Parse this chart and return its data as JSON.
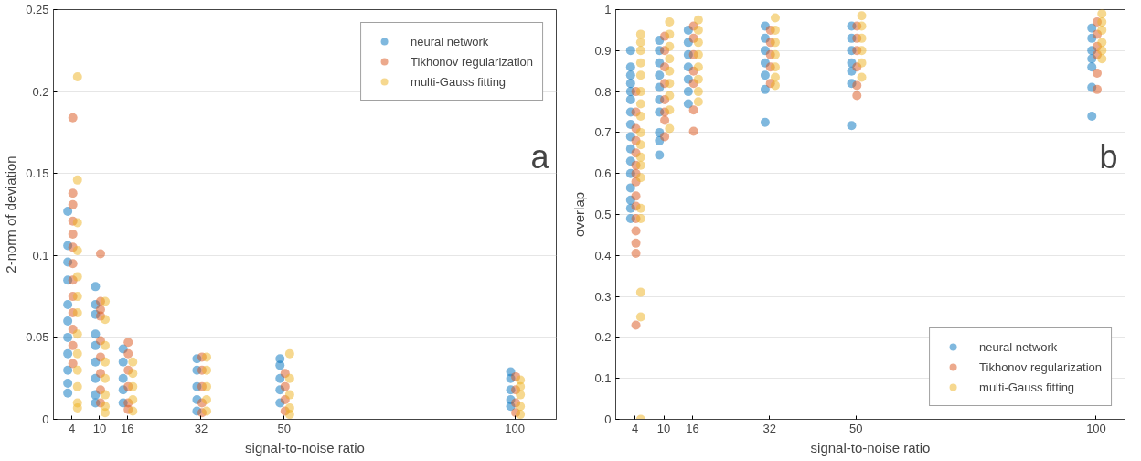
{
  "chart_data": [
    {
      "type": "scatter",
      "xlabel": "signal-to-noise ratio",
      "ylabel": "2-norm of deviation",
      "annotations": [
        "a"
      ],
      "xlim": [
        0,
        109
      ],
      "xticks": [
        4,
        10,
        16,
        32,
        50,
        100
      ],
      "ylim": [
        0,
        0.25
      ],
      "yticks": [
        0,
        0.05,
        0.1,
        0.15,
        0.2,
        0.25
      ],
      "grid": "y",
      "legend": "top right",
      "marker": "circle",
      "series": [
        {
          "name": "neural network",
          "color": "#0072bd",
          "x": [
            3.1,
            3.1,
            3.1,
            3.1,
            3.1,
            3.1,
            3.1,
            3.1,
            3.1,
            3.1,
            3.1,
            9.1,
            9.1,
            9.1,
            9.1,
            9.1,
            9.1,
            9.1,
            9.1,
            9.1,
            15.1,
            15.1,
            15.1,
            15.1,
            15.1,
            31.1,
            31.1,
            31.1,
            31.1,
            31.1,
            49.1,
            49.1,
            49.1,
            49.1,
            49.1,
            99.1,
            99.1,
            99.1,
            99.1,
            99.1
          ],
          "values": [
            0.127,
            0.106,
            0.096,
            0.085,
            0.07,
            0.06,
            0.05,
            0.04,
            0.03,
            0.022,
            0.016,
            0.081,
            0.07,
            0.064,
            0.052,
            0.045,
            0.035,
            0.025,
            0.015,
            0.01,
            0.043,
            0.035,
            0.025,
            0.018,
            0.01,
            0.037,
            0.03,
            0.02,
            0.012,
            0.005,
            0.037,
            0.033,
            0.025,
            0.018,
            0.01,
            0.029,
            0.025,
            0.018,
            0.012,
            0.008
          ]
        },
        {
          "name": "Tikhonov regularization",
          "color": "#d95319",
          "x": [
            4.2,
            4.2,
            4.2,
            4.2,
            4.2,
            4.2,
            4.2,
            4.2,
            4.2,
            4.2,
            4.2,
            4.2,
            4.2,
            10.2,
            10.2,
            10.2,
            10.2,
            10.2,
            10.2,
            10.2,
            10.2,
            10.2,
            16.2,
            16.2,
            16.2,
            16.2,
            16.2,
            16.2,
            32.2,
            32.2,
            32.2,
            32.2,
            32.2,
            50.2,
            50.2,
            50.2,
            50.2,
            100.2,
            100.2,
            100.2,
            100.2
          ],
          "values": [
            0.184,
            0.138,
            0.131,
            0.121,
            0.113,
            0.105,
            0.095,
            0.085,
            0.075,
            0.065,
            0.055,
            0.045,
            0.034,
            0.101,
            0.072,
            0.067,
            0.063,
            0.048,
            0.038,
            0.028,
            0.018,
            0.01,
            0.047,
            0.04,
            0.03,
            0.02,
            0.01,
            0.006,
            0.038,
            0.03,
            0.02,
            0.01,
            0.004,
            0.028,
            0.02,
            0.012,
            0.005,
            0.026,
            0.018,
            0.01,
            0.004
          ]
        },
        {
          "name": "multi-Gauss fitting",
          "color": "#edb120",
          "x": [
            5.2,
            5.2,
            5.2,
            5.2,
            5.2,
            5.2,
            5.2,
            5.2,
            5.2,
            5.2,
            5.2,
            5.2,
            5.2,
            11.2,
            11.2,
            11.2,
            11.2,
            11.2,
            11.2,
            11.2,
            11.2,
            17.2,
            17.2,
            17.2,
            17.2,
            17.2,
            33.2,
            33.2,
            33.2,
            33.2,
            33.2,
            51.2,
            51.2,
            51.2,
            51.2,
            51.2,
            101.2,
            101.2,
            101.2,
            101.2,
            101.2
          ],
          "values": [
            0.209,
            0.146,
            0.12,
            0.103,
            0.087,
            0.075,
            0.065,
            0.052,
            0.04,
            0.03,
            0.02,
            0.01,
            0.007,
            0.072,
            0.061,
            0.045,
            0.035,
            0.025,
            0.015,
            0.008,
            0.004,
            0.035,
            0.028,
            0.02,
            0.012,
            0.005,
            0.038,
            0.03,
            0.02,
            0.012,
            0.005,
            0.04,
            0.025,
            0.015,
            0.007,
            0.003,
            0.024,
            0.02,
            0.015,
            0.008,
            0.003
          ]
        }
      ]
    },
    {
      "type": "scatter",
      "xlabel": "signal-to-noise ratio",
      "ylabel": "overlap",
      "annotations": [
        "b"
      ],
      "xlim": [
        0,
        106
      ],
      "xticks": [
        4,
        10,
        16,
        32,
        50,
        100
      ],
      "ylim": [
        0,
        1
      ],
      "yticks": [
        0,
        0.1,
        0.2,
        0.3,
        0.4,
        0.5,
        0.6,
        0.7,
        0.8,
        0.9,
        1
      ],
      "grid": "y",
      "legend": "bottom right",
      "marker": "circle",
      "series": [
        {
          "name": "neural network",
          "color": "#0072bd",
          "x": [
            3.1,
            3.1,
            3.1,
            3.1,
            3.1,
            3.1,
            3.1,
            3.1,
            3.1,
            3.1,
            3.1,
            3.1,
            3.1,
            3.1,
            3.1,
            3.1,
            9.1,
            9.1,
            9.1,
            9.1,
            9.1,
            9.1,
            9.1,
            9.1,
            9.1,
            9.1,
            15.1,
            15.1,
            15.1,
            15.1,
            15.1,
            15.1,
            15.1,
            31.1,
            31.1,
            31.1,
            31.1,
            31.1,
            31.1,
            31.1,
            49.1,
            49.1,
            49.1,
            49.1,
            49.1,
            49.1,
            49.1,
            99.1,
            99.1,
            99.1,
            99.1,
            99.1,
            99.1,
            99.1
          ],
          "values": [
            0.9,
            0.86,
            0.84,
            0.82,
            0.8,
            0.78,
            0.75,
            0.72,
            0.69,
            0.66,
            0.63,
            0.6,
            0.565,
            0.535,
            0.515,
            0.49,
            0.925,
            0.9,
            0.87,
            0.84,
            0.81,
            0.78,
            0.75,
            0.7,
            0.68,
            0.645,
            0.95,
            0.92,
            0.89,
            0.86,
            0.83,
            0.8,
            0.77,
            0.96,
            0.93,
            0.9,
            0.87,
            0.84,
            0.805,
            0.725,
            0.96,
            0.93,
            0.9,
            0.87,
            0.85,
            0.82,
            0.717,
            0.955,
            0.93,
            0.9,
            0.88,
            0.86,
            0.81,
            0.74
          ]
        },
        {
          "name": "Tikhonov regularization",
          "color": "#d95319",
          "x": [
            4.2,
            4.2,
            4.2,
            4.2,
            4.2,
            4.2,
            4.2,
            4.2,
            4.2,
            4.2,
            4.2,
            4.2,
            4.2,
            4.2,
            4.2,
            10.2,
            10.2,
            10.2,
            10.2,
            10.2,
            10.2,
            10.2,
            10.2,
            16.2,
            16.2,
            16.2,
            16.2,
            16.2,
            16.2,
            16.2,
            32.2,
            32.2,
            32.2,
            32.2,
            32.2,
            50.2,
            50.2,
            50.2,
            50.2,
            50.2,
            50.2,
            100.2,
            100.2,
            100.2,
            100.2,
            100.2,
            100.2
          ],
          "values": [
            0.8,
            0.75,
            0.71,
            0.68,
            0.65,
            0.62,
            0.6,
            0.58,
            0.545,
            0.52,
            0.49,
            0.46,
            0.43,
            0.405,
            0.23,
            0.935,
            0.9,
            0.86,
            0.82,
            0.78,
            0.75,
            0.73,
            0.69,
            0.96,
            0.93,
            0.89,
            0.85,
            0.82,
            0.755,
            0.703,
            0.95,
            0.92,
            0.89,
            0.86,
            0.82,
            0.96,
            0.93,
            0.9,
            0.86,
            0.815,
            0.79,
            0.97,
            0.94,
            0.91,
            0.89,
            0.845,
            0.805
          ]
        },
        {
          "name": "multi-Gauss fitting",
          "color": "#edb120",
          "x": [
            5.2,
            5.2,
            5.2,
            5.2,
            5.2,
            5.2,
            5.2,
            5.2,
            5.2,
            5.2,
            5.2,
            5.2,
            5.2,
            5.2,
            5.2,
            5.2,
            5.2,
            5.2,
            11.2,
            11.2,
            11.2,
            11.2,
            11.2,
            11.2,
            11.2,
            11.2,
            11.2,
            17.2,
            17.2,
            17.2,
            17.2,
            17.2,
            17.2,
            17.2,
            17.2,
            33.2,
            33.2,
            33.2,
            33.2,
            33.2,
            33.2,
            33.2,
            51.2,
            51.2,
            51.2,
            51.2,
            51.2,
            51.2,
            101.2,
            101.2,
            101.2,
            101.2,
            101.2,
            101.2
          ],
          "values": [
            0.94,
            0.92,
            0.9,
            0.87,
            0.84,
            0.8,
            0.77,
            0.74,
            0.7,
            0.67,
            0.64,
            0.62,
            0.59,
            0.515,
            0.49,
            0.31,
            0.25,
            0.0,
            0.97,
            0.94,
            0.91,
            0.88,
            0.85,
            0.82,
            0.79,
            0.755,
            0.71,
            0.975,
            0.95,
            0.92,
            0.89,
            0.86,
            0.83,
            0.8,
            0.775,
            0.98,
            0.95,
            0.92,
            0.89,
            0.86,
            0.835,
            0.815,
            0.985,
            0.96,
            0.93,
            0.9,
            0.87,
            0.835,
            0.99,
            0.97,
            0.95,
            0.92,
            0.9,
            0.88
          ]
        }
      ]
    }
  ]
}
